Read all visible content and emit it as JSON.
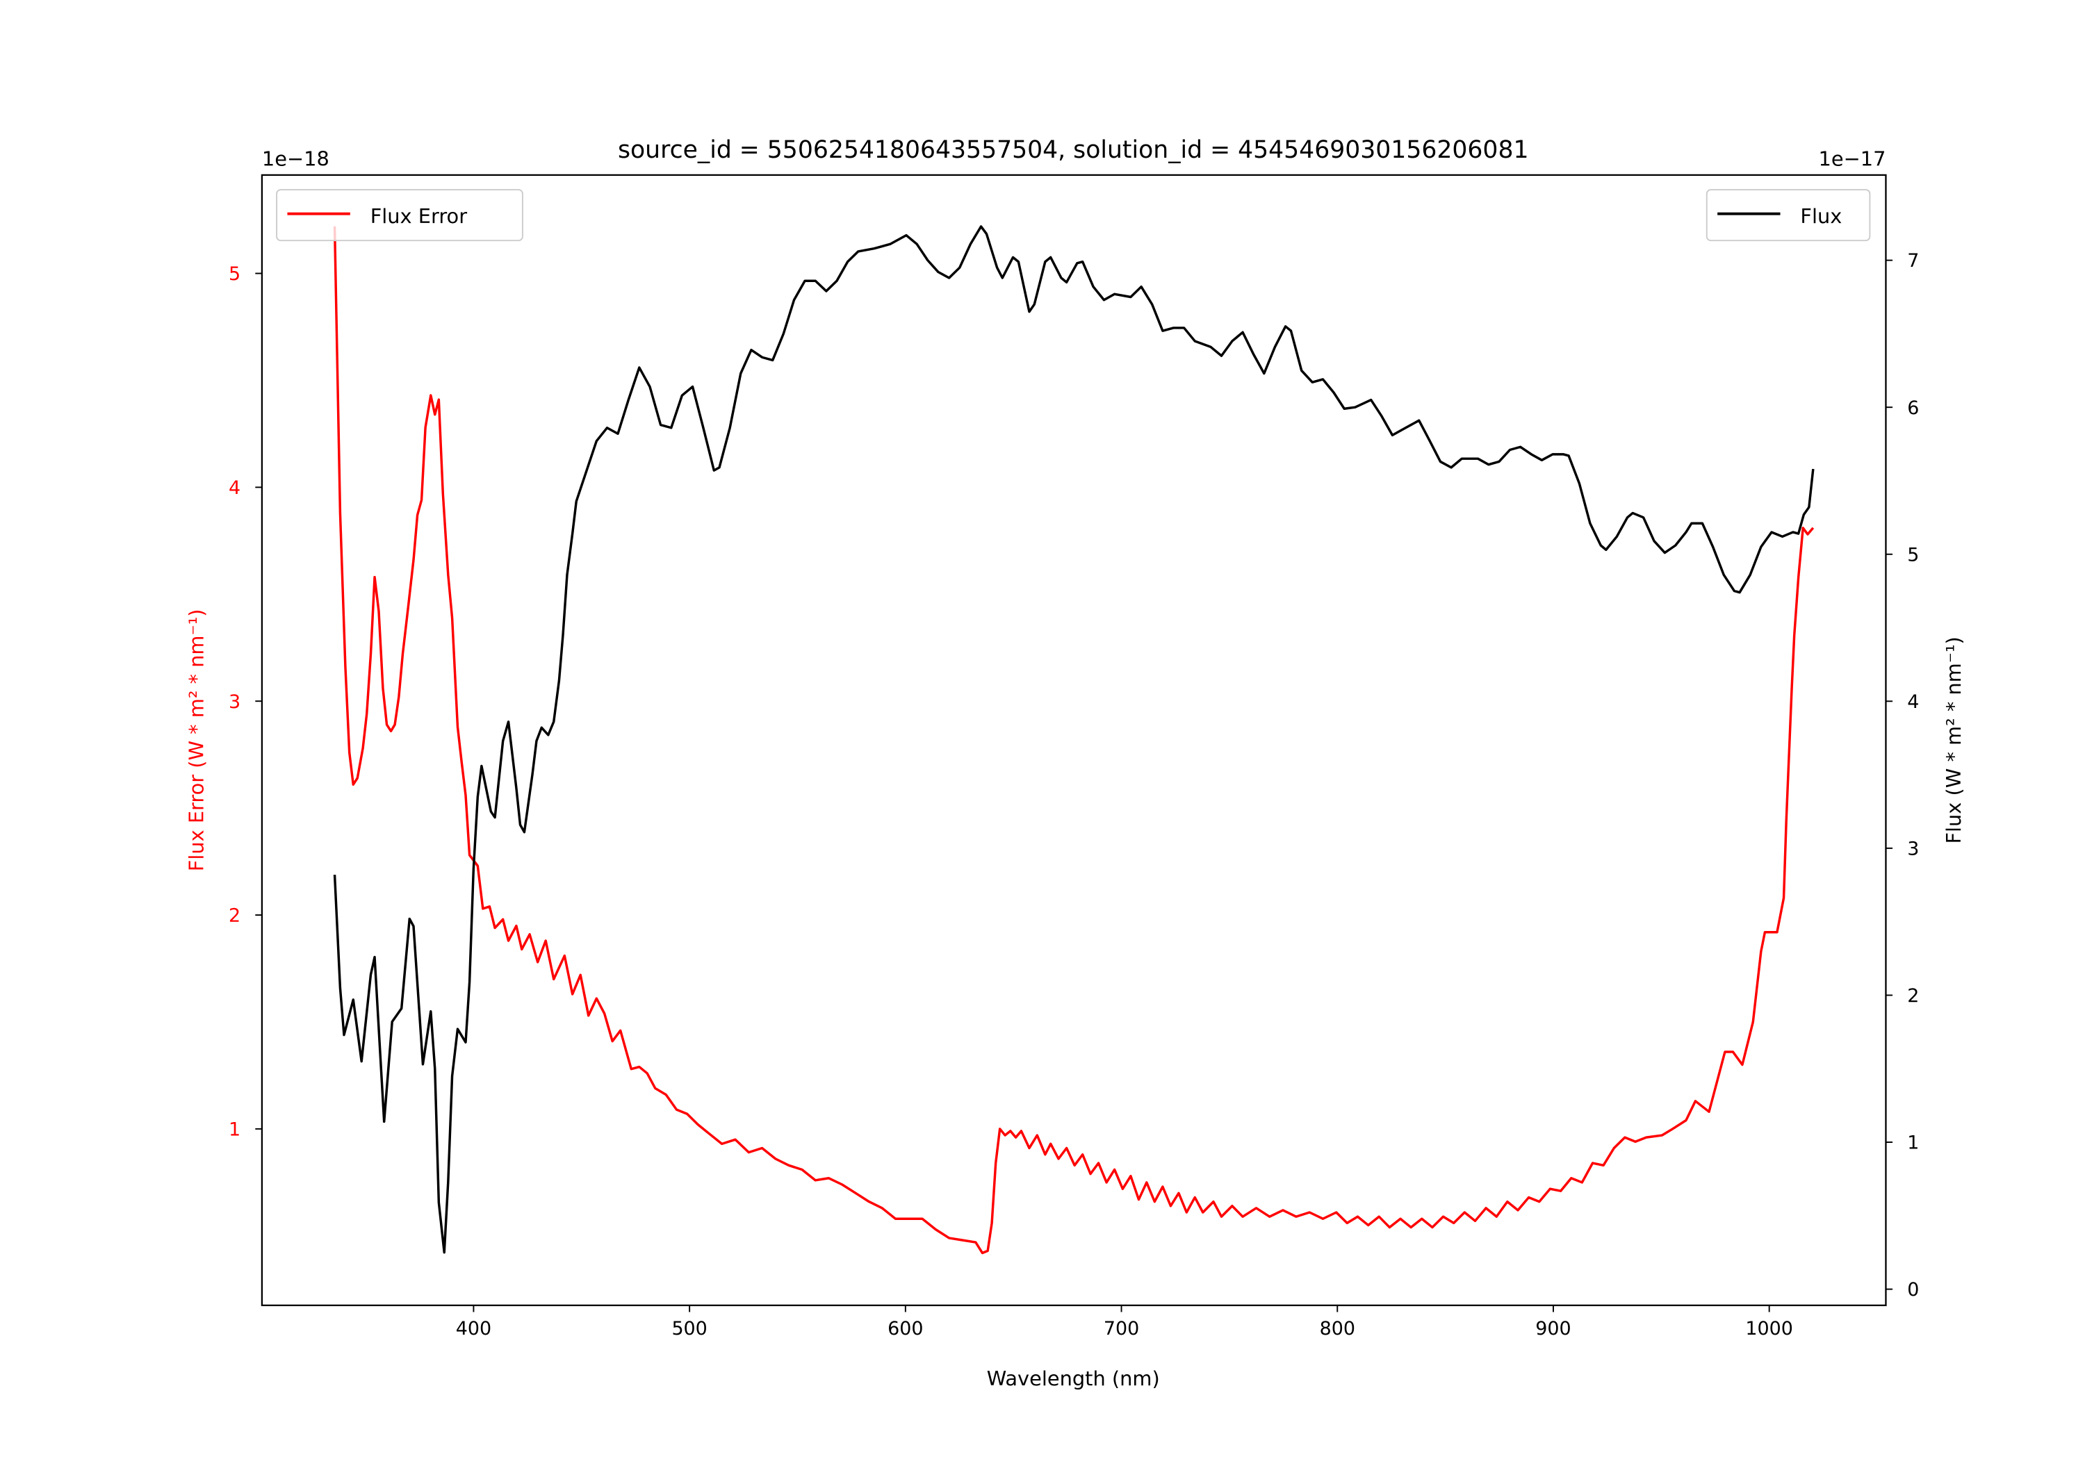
{
  "chart_data": {
    "type": "line",
    "title": "source_id = 5506254180643557504, solution_id = 4545469030156206081",
    "xlabel": "Wavelength (nm)",
    "ylabel_left": "Flux Error (W * m² * nm⁻¹)",
    "ylabel_right": "Flux (W * m² * nm⁻¹)",
    "offset_left": "1e−18",
    "offset_right": "1e−17",
    "xlim": [
      302,
      1054
    ],
    "ylim_left": [
      0.175,
      5.46
    ],
    "ylim_right": [
      -0.11,
      7.58
    ],
    "x_ticks": [
      "400",
      "500",
      "600",
      "700",
      "800",
      "900",
      "1000"
    ],
    "y_left_ticks": [
      "1",
      "2",
      "3",
      "4",
      "5"
    ],
    "y_right_ticks": [
      "0",
      "1",
      "2",
      "3",
      "4",
      "5",
      "6",
      "7"
    ],
    "grid": false,
    "colors": {
      "flux_error": "#ff0000",
      "flux": "#000000"
    },
    "legends": [
      {
        "label": "Flux Error",
        "placement": "top-left",
        "axis": "left"
      },
      {
        "label": "Flux",
        "placement": "top-right",
        "axis": "right"
      }
    ],
    "series": [
      {
        "name": "Flux Error",
        "axis": "left",
        "scale": "1e-18",
        "x": [
          335.7,
          338.2,
          340.6,
          342.5,
          344.3,
          346.2,
          348.7,
          350.5,
          352.4,
          354.2,
          356.1,
          358.0,
          359.8,
          361.7,
          363.5,
          365.4,
          367.2,
          369.7,
          372.2,
          374.0,
          375.9,
          377.7,
          380.2,
          382.1,
          383.9,
          385.8,
          388.2,
          390.1,
          392.6,
          394.4,
          396.3,
          398.1,
          401.9,
          404.3,
          407.4,
          409.9,
          413.6,
          416.1,
          419.8,
          422.3,
          426.0,
          429.7,
          433.4,
          437.1,
          442.1,
          445.8,
          449.5,
          453.2,
          456.9,
          460.6,
          464.3,
          468.0,
          473.0,
          476.7,
          480.4,
          484.1,
          489.1,
          494.0,
          498.9,
          503.9,
          508.8,
          515.0,
          521.2,
          527.4,
          533.6,
          539.8,
          545.9,
          552.1,
          558.3,
          564.5,
          570.7,
          576.9,
          583.1,
          589.2,
          595.4,
          601.6,
          607.8,
          614.0,
          620.2,
          626.3,
          632.5,
          635.6,
          638.1,
          640.0,
          641.8,
          643.7,
          646.1,
          648.6,
          651.1,
          653.6,
          657.3,
          661.0,
          664.7,
          667.2,
          670.9,
          674.6,
          678.3,
          682.0,
          685.7,
          689.4,
          693.1,
          696.8,
          700.6,
          704.3,
          708.0,
          711.7,
          715.4,
          719.1,
          722.8,
          726.5,
          730.2,
          734.0,
          737.7,
          742.6,
          746.3,
          751.3,
          756.2,
          762.4,
          768.6,
          774.8,
          780.9,
          787.1,
          793.3,
          799.5,
          804.5,
          809.4,
          814.3,
          819.3,
          824.2,
          829.2,
          834.1,
          839.1,
          844.0,
          849.0,
          853.9,
          858.9,
          863.8,
          868.8,
          873.7,
          878.7,
          883.6,
          888.6,
          893.5,
          898.5,
          903.4,
          908.3,
          913.3,
          918.2,
          923.2,
          928.1,
          933.1,
          938.0,
          943.0,
          950.4,
          955.3,
          961.5,
          965.8,
          972.1,
          979.5,
          983.2,
          987.5,
          992.5,
          996.2,
          998.0,
          1003.6,
          1006.7,
          1007.9,
          1010.4,
          1011.6,
          1013.5,
          1015.6,
          1017.8,
          1020.3
        ],
        "y": [
          5.22,
          3.88,
          3.16,
          2.76,
          2.61,
          2.64,
          2.78,
          2.94,
          3.22,
          3.58,
          3.42,
          3.06,
          2.89,
          2.86,
          2.89,
          3.02,
          3.22,
          3.44,
          3.66,
          3.87,
          3.94,
          4.28,
          4.43,
          4.34,
          4.41,
          3.97,
          3.59,
          3.39,
          2.88,
          2.72,
          2.56,
          2.28,
          2.23,
          2.03,
          2.04,
          1.94,
          1.98,
          1.88,
          1.95,
          1.84,
          1.91,
          1.78,
          1.88,
          1.7,
          1.81,
          1.63,
          1.72,
          1.53,
          1.61,
          1.54,
          1.41,
          1.46,
          1.28,
          1.29,
          1.26,
          1.19,
          1.16,
          1.09,
          1.07,
          1.02,
          0.98,
          0.93,
          0.95,
          0.89,
          0.91,
          0.86,
          0.83,
          0.81,
          0.76,
          0.77,
          0.74,
          0.7,
          0.66,
          0.63,
          0.58,
          0.58,
          0.58,
          0.53,
          0.49,
          0.48,
          0.47,
          0.42,
          0.43,
          0.56,
          0.84,
          1.0,
          0.97,
          0.99,
          0.96,
          0.99,
          0.91,
          0.97,
          0.88,
          0.93,
          0.86,
          0.91,
          0.83,
          0.88,
          0.79,
          0.84,
          0.75,
          0.81,
          0.72,
          0.78,
          0.67,
          0.75,
          0.66,
          0.73,
          0.64,
          0.7,
          0.61,
          0.68,
          0.61,
          0.66,
          0.59,
          0.64,
          0.59,
          0.63,
          0.59,
          0.62,
          0.59,
          0.61,
          0.58,
          0.61,
          0.56,
          0.59,
          0.55,
          0.59,
          0.54,
          0.58,
          0.54,
          0.58,
          0.54,
          0.59,
          0.56,
          0.61,
          0.57,
          0.63,
          0.59,
          0.66,
          0.62,
          0.68,
          0.66,
          0.72,
          0.71,
          0.77,
          0.75,
          0.84,
          0.83,
          0.91,
          0.96,
          0.94,
          0.96,
          0.97,
          1.0,
          1.04,
          1.13,
          1.08,
          1.36,
          1.36,
          1.3,
          1.5,
          1.83,
          1.92,
          1.92,
          2.08,
          2.44,
          3.06,
          3.31,
          3.58,
          3.81,
          3.78,
          3.81
        ]
      },
      {
        "name": "Flux",
        "axis": "right",
        "scale": "1e-17",
        "x": [
          335.7,
          338.2,
          340.0,
          344.3,
          348.1,
          352.4,
          354.2,
          358.6,
          362.3,
          366.6,
          370.3,
          372.2,
          376.5,
          380.2,
          382.1,
          383.9,
          386.4,
          388.2,
          390.1,
          392.6,
          396.3,
          398.1,
          400.0,
          401.9,
          403.7,
          408.0,
          409.9,
          413.6,
          416.1,
          419.8,
          421.6,
          423.5,
          427.2,
          429.1,
          431.5,
          434.6,
          437.1,
          439.6,
          441.4,
          443.3,
          445.8,
          447.6,
          451.9,
          456.9,
          461.8,
          466.8,
          471.7,
          476.7,
          481.6,
          486.6,
          491.5,
          496.5,
          501.4,
          506.4,
          511.3,
          513.8,
          518.7,
          523.7,
          528.6,
          533.6,
          538.5,
          543.5,
          548.4,
          553.4,
          558.3,
          563.3,
          568.2,
          573.2,
          578.1,
          585.5,
          592.9,
          600.4,
          605.3,
          610.3,
          615.2,
          620.2,
          625.1,
          630.1,
          635.0,
          637.5,
          642.4,
          644.9,
          649.8,
          652.3,
          657.3,
          659.7,
          664.7,
          667.2,
          672.1,
          674.6,
          679.5,
          682.0,
          687.0,
          691.9,
          696.8,
          704.3,
          709.2,
          714.2,
          719.1,
          724.1,
          729.0,
          734.0,
          741.4,
          746.3,
          751.3,
          756.2,
          761.2,
          766.1,
          771.1,
          776.0,
          778.5,
          783.4,
          788.4,
          793.3,
          798.3,
          803.2,
          808.2,
          815.6,
          820.5,
          825.5,
          830.4,
          837.8,
          842.8,
          847.7,
          852.7,
          857.6,
          865.1,
          870.0,
          874.9,
          879.9,
          884.8,
          889.8,
          894.7,
          899.7,
          904.6,
          907.1,
          912.1,
          917.0,
          922.0,
          924.4,
          929.4,
          934.3,
          936.8,
          941.7,
          946.7,
          951.6,
          956.6,
          961.5,
          964.0,
          969.0,
          973.9,
          978.9,
          983.8,
          986.3,
          991.2,
          996.2,
          1001.1,
          1006.1,
          1011.0,
          1013.5,
          1016.0,
          1018.4,
          1020.3
        ],
        "y": [
          2.82,
          2.05,
          1.73,
          1.97,
          1.55,
          2.14,
          2.26,
          1.14,
          1.82,
          1.91,
          2.52,
          2.47,
          1.53,
          1.89,
          1.5,
          0.59,
          0.25,
          0.73,
          1.45,
          1.77,
          1.68,
          2.09,
          2.86,
          3.35,
          3.56,
          3.25,
          3.21,
          3.73,
          3.86,
          3.41,
          3.16,
          3.11,
          3.5,
          3.73,
          3.82,
          3.77,
          3.86,
          4.14,
          4.45,
          4.86,
          5.14,
          5.36,
          5.55,
          5.77,
          5.86,
          5.82,
          6.05,
          6.27,
          6.14,
          5.88,
          5.86,
          6.08,
          6.14,
          5.86,
          5.57,
          5.59,
          5.86,
          6.23,
          6.39,
          6.34,
          6.32,
          6.5,
          6.73,
          6.86,
          6.86,
          6.79,
          6.86,
          6.99,
          7.06,
          7.08,
          7.11,
          7.17,
          7.11,
          7.0,
          6.92,
          6.88,
          6.95,
          7.11,
          7.23,
          7.18,
          6.95,
          6.88,
          7.02,
          6.99,
          6.65,
          6.7,
          6.99,
          7.02,
          6.88,
          6.85,
          6.98,
          6.99,
          6.82,
          6.73,
          6.77,
          6.75,
          6.82,
          6.7,
          6.52,
          6.54,
          6.54,
          6.45,
          6.41,
          6.35,
          6.45,
          6.51,
          6.36,
          6.23,
          6.41,
          6.55,
          6.52,
          6.25,
          6.17,
          6.19,
          6.1,
          5.99,
          6.0,
          6.05,
          5.94,
          5.81,
          5.85,
          5.91,
          5.77,
          5.63,
          5.59,
          5.65,
          5.65,
          5.61,
          5.63,
          5.71,
          5.73,
          5.68,
          5.64,
          5.68,
          5.68,
          5.67,
          5.48,
          5.21,
          5.06,
          5.03,
          5.12,
          5.25,
          5.28,
          5.25,
          5.09,
          5.01,
          5.06,
          5.15,
          5.21,
          5.21,
          5.05,
          4.86,
          4.75,
          4.74,
          4.86,
          5.05,
          5.15,
          5.12,
          5.15,
          5.14,
          5.27,
          5.32,
          5.58
        ]
      }
    ]
  }
}
